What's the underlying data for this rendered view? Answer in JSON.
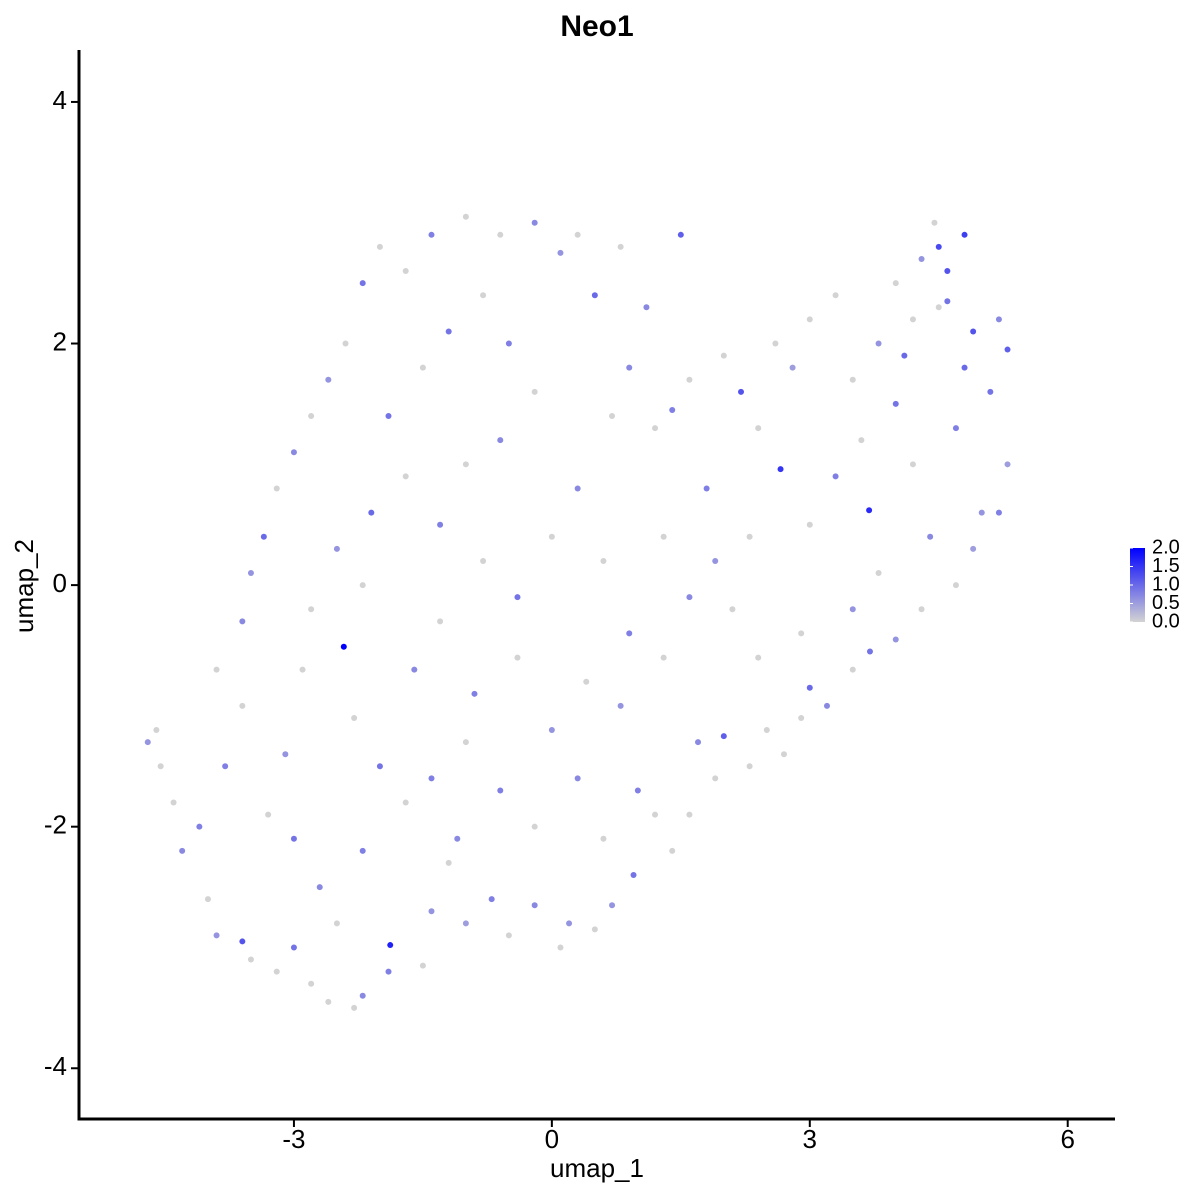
{
  "chart_data": {
    "type": "scatter",
    "title": "Neo1",
    "x_label": "umap_1",
    "y_label": "umap_2",
    "x": [
      -4.7,
      -4.6,
      -4.55,
      -4.4,
      -4.3,
      -4.1,
      -4.0,
      -3.9,
      -3.6,
      -3.5,
      -3.2,
      -3.0,
      -2.8,
      -2.6,
      -2.3,
      -2.2,
      -1.9,
      -1.88,
      -1.5,
      -1.4,
      -1.2,
      -1.0,
      -0.7,
      -0.5,
      -0.2,
      0.1,
      0.2,
      0.5,
      0.7,
      0.95,
      1.0,
      1.2,
      1.6,
      1.7,
      1.9,
      2.0,
      2.3,
      2.5,
      2.7,
      2.9,
      3.0,
      3.2,
      3.5,
      3.7,
      4.0,
      4.3,
      4.7,
      4.9,
      5.0,
      5.2,
      5.3,
      5.1,
      5.3,
      5.2,
      4.9,
      4.8,
      4.6,
      4.5,
      4.45,
      4.3,
      4.6,
      4.8,
      4.2,
      4.0,
      3.8,
      3.5,
      3.3,
      3.0,
      2.8,
      2.6,
      2.2,
      2.0,
      1.6,
      1.4,
      1.2,
      0.9,
      0.7,
      0.5,
      0.8,
      1.1,
      1.5,
      0.3,
      0.1,
      -0.2,
      -0.6,
      -1.0,
      -1.4,
      -1.7,
      -2.0,
      -2.2,
      -2.4,
      -2.6,
      -2.8,
      -3.0,
      -3.2,
      -3.35,
      -3.5,
      -3.6,
      -3.9,
      -3.6,
      -3.8,
      -3.3,
      -3.0,
      -2.7,
      -2.5,
      -2.2,
      -2.0,
      -2.3,
      -2.42,
      -2.8,
      -2.5,
      -2.1,
      -1.7,
      -1.9,
      -1.5,
      -1.2,
      -0.8,
      -0.5,
      -0.2,
      -0.6,
      -1.0,
      -1.3,
      -0.8,
      -0.4,
      0.0,
      0.3,
      0.6,
      0.9,
      0.4,
      0.0,
      -0.4,
      -0.9,
      -1.3,
      -1.6,
      -1.7,
      -1.4,
      -1.0,
      -0.6,
      -0.2,
      0.3,
      0.6,
      0.8,
      1.3,
      1.6,
      1.3,
      1.8,
      2.3,
      2.66,
      2.4,
      3.0,
      3.3,
      3.69,
      3.6,
      4.0,
      4.2,
      4.4,
      3.8,
      3.5,
      2.9,
      2.4,
      2.1,
      1.9,
      4.1,
      4.7,
      4.5,
      -3.1,
      -2.9,
      -2.2,
      -1.1,
      1.4
    ],
    "y": [
      -1.3,
      -1.2,
      -1.5,
      -1.8,
      -2.2,
      -2.0,
      -2.6,
      -2.9,
      -2.95,
      -3.1,
      -3.2,
      -3.0,
      -3.3,
      -3.45,
      -3.5,
      -3.4,
      -3.2,
      -2.98,
      -3.15,
      -2.7,
      -2.3,
      -2.8,
      -2.6,
      -2.9,
      -2.65,
      -3.0,
      -2.8,
      -2.85,
      -2.65,
      -2.4,
      -1.7,
      -1.9,
      -1.9,
      -1.3,
      -1.6,
      -1.25,
      -1.5,
      -1.2,
      -1.4,
      -1.1,
      -0.85,
      -1.0,
      -0.7,
      -0.55,
      -0.45,
      -0.2,
      0.0,
      0.3,
      0.6,
      0.6,
      1.0,
      1.6,
      1.95,
      2.2,
      2.1,
      1.8,
      2.35,
      2.8,
      3.0,
      2.7,
      2.6,
      2.9,
      2.2,
      2.5,
      2.0,
      1.7,
      2.4,
      2.2,
      1.8,
      2.0,
      1.6,
      1.9,
      1.7,
      1.45,
      1.3,
      1.8,
      1.4,
      2.4,
      2.8,
      2.3,
      2.9,
      2.9,
      2.75,
      3.0,
      2.9,
      3.05,
      2.9,
      2.6,
      2.8,
      2.5,
      2.0,
      1.7,
      1.4,
      1.1,
      0.8,
      0.4,
      0.1,
      -0.3,
      -0.7,
      -1.0,
      -1.5,
      -1.9,
      -2.1,
      -2.5,
      -2.8,
      -2.2,
      -1.5,
      -1.1,
      -0.51,
      -0.2,
      0.3,
      0.6,
      0.9,
      1.4,
      1.8,
      2.1,
      2.4,
      2.0,
      1.6,
      1.2,
      1.0,
      0.5,
      0.2,
      -0.1,
      0.4,
      0.8,
      0.2,
      -0.4,
      -0.8,
      -1.2,
      -0.6,
      -0.9,
      -0.3,
      -0.7,
      -1.8,
      -1.6,
      -1.3,
      -1.7,
      -2.0,
      -1.6,
      -2.1,
      -1.0,
      -0.6,
      -0.1,
      0.4,
      0.8,
      0.4,
      0.96,
      1.3,
      0.5,
      0.9,
      0.62,
      1.2,
      1.5,
      1.0,
      0.4,
      0.1,
      -0.2,
      -0.4,
      -0.6,
      -0.2,
      0.2,
      1.9,
      1.3,
      2.3,
      -1.4,
      -0.7,
      0.0,
      -2.1,
      -2.2
    ],
    "values": [
      0.6,
      0,
      0,
      0,
      0.7,
      0.8,
      0,
      0.6,
      1.2,
      0,
      0,
      0.9,
      0,
      0,
      0,
      0.7,
      0.8,
      1.7,
      0,
      0.6,
      0,
      0.5,
      0.8,
      0,
      0.7,
      0,
      0.6,
      0,
      0.6,
      0.9,
      0.8,
      0,
      0,
      0.7,
      0,
      1.1,
      0,
      0,
      0,
      0,
      1.0,
      0.7,
      0,
      0.9,
      0.6,
      0,
      0,
      0.5,
      0.6,
      0.8,
      0.5,
      0.9,
      1.1,
      0.7,
      1.2,
      1.0,
      0.9,
      1.3,
      0,
      0.6,
      1.2,
      1.4,
      0,
      0,
      0.6,
      0,
      0,
      0,
      0.5,
      0,
      1.2,
      0,
      0,
      0.8,
      0,
      0.7,
      0,
      1.0,
      0,
      0.7,
      1.1,
      0,
      0.6,
      0.7,
      0,
      0,
      0.8,
      0,
      0,
      0.9,
      0,
      0.6,
      0,
      0.7,
      0,
      1.0,
      0.6,
      0.7,
      0,
      0,
      0.8,
      0,
      0.9,
      0.7,
      0,
      0.8,
      0.9,
      0,
      2.0,
      0,
      0.6,
      1.0,
      0,
      0.9,
      0,
      0.9,
      0,
      0.8,
      0,
      0.7,
      0,
      0.8,
      0,
      0.9,
      0,
      0.7,
      0,
      0.8,
      0,
      0.6,
      0,
      0.8,
      0,
      0.7,
      0,
      0.8,
      0,
      0.8,
      0,
      0.7,
      0,
      0.6,
      0,
      0.7,
      0,
      0.8,
      0,
      1.5,
      0,
      0,
      0.8,
      1.6,
      0,
      0.9,
      0,
      0.7,
      0,
      0.6,
      0,
      0,
      0,
      0.6,
      1.0,
      0.8,
      0,
      0.6,
      0,
      0,
      0.7,
      0
    ],
    "low_color": "#d3d3d3",
    "high_color": "#0000ff",
    "xlim": [
      -5.5,
      6.55
    ],
    "xticks": [
      -3,
      0,
      3,
      6
    ],
    "ylim": [
      -4.42,
      4.43
    ],
    "yticks": [
      -4,
      -2,
      0,
      2,
      4
    ],
    "colorbar_lim": [
      0,
      2
    ],
    "colorbar_ticks": [
      {
        "value": 0,
        "label": "0.0"
      },
      {
        "value": 0.5,
        "label": "0.5"
      },
      {
        "value": 1,
        "label": "1.0"
      },
      {
        "value": 1.5,
        "label": "1.5"
      },
      {
        "value": 2,
        "label": "2.0"
      }
    ]
  }
}
